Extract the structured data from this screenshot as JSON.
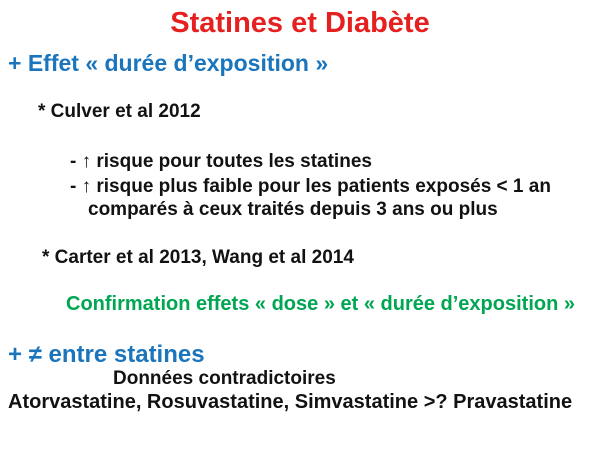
{
  "slide": {
    "title": "Statines et Diabète",
    "exposure_heading": "+ Effet « durée d’exposition »",
    "culver_ref": "* Culver et al 2012",
    "culver_points": [
      "- ↑ risque pour toutes les statines",
      "- ↑ risque plus faible pour les patients exposés < 1 an",
      "comparés à ceux traités depuis 3 ans ou plus"
    ],
    "carter_ref": "* Carter et al 2013, Wang et al 2014",
    "confirmation": "Confirmation effets « dose » et « durée d’exposition »",
    "difference_heading": "+ ≠ entre statines",
    "contradictory_note": "Données contradictoires",
    "statin_comparison": "Atorvastatine, Rosuvastatine, Simvastatine >? Pravastatine"
  },
  "colors": {
    "title_red": "#E52020",
    "heading_blue": "#1B75BC",
    "confirmation_green": "#00A651",
    "body_black": "#121212"
  }
}
